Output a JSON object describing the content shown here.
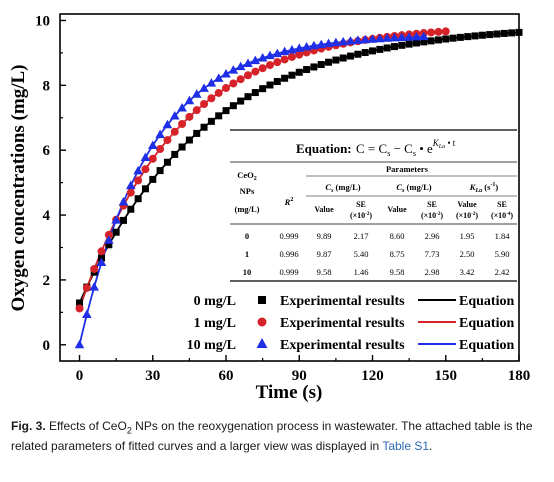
{
  "caption": {
    "label": "Fig. 3.",
    "text_before_sub": " Effects of CeO",
    "subscript": "2",
    "text_after_sub": " NPs on the reoxygenation process in wastewater. The attached table is the related parameters of fitted curves and a larger view was displayed in ",
    "link": "Table S1",
    "end": "."
  },
  "chart_data": {
    "type": "scatter",
    "xlabel": "Time (s)",
    "ylabel": "Oxygen concentrations (mg/L)",
    "xlim": [
      -8,
      180
    ],
    "ylim": [
      -0.5,
      10.2
    ],
    "xticks": [
      0,
      30,
      60,
      90,
      120,
      150,
      180
    ],
    "yticks": [
      0,
      2,
      4,
      6,
      8,
      10
    ],
    "series": [
      {
        "name": "0 mg/L",
        "marker": "square",
        "color": "#000000",
        "line_color": "#000000",
        "x": [
          0,
          3,
          6,
          9,
          12,
          15,
          18,
          21,
          24,
          27,
          30,
          33,
          36,
          39,
          42,
          45,
          48,
          51,
          54,
          57,
          60,
          63,
          66,
          69,
          72,
          75,
          78,
          81,
          84,
          87,
          90,
          93,
          96,
          99,
          102,
          105,
          108,
          111,
          114,
          117,
          120,
          123,
          126,
          129,
          132,
          135,
          138,
          141,
          144,
          147,
          150,
          153,
          156,
          159,
          162,
          165,
          168,
          171,
          174,
          177,
          180
        ],
        "cs": 9.89,
        "c0": 8.6,
        "k": 0.0195,
        "t_end": 180
      },
      {
        "name": "1 mg/L",
        "marker": "circle",
        "color": "#d6232a",
        "line_color": "#d6232a",
        "x": [
          0,
          3,
          6,
          9,
          12,
          15,
          18,
          21,
          24,
          27,
          30,
          33,
          36,
          39,
          42,
          45,
          48,
          51,
          54,
          57,
          60,
          63,
          66,
          69,
          72,
          75,
          78,
          81,
          84,
          87,
          90,
          93,
          96,
          99,
          102,
          105,
          108,
          111,
          114,
          117,
          120,
          123,
          126,
          129,
          132,
          135,
          138,
          141,
          144,
          147,
          150
        ],
        "cs": 9.87,
        "c0": 8.75,
        "k": 0.025,
        "t_end": 150
      },
      {
        "name": "10 mg/L",
        "marker": "triangle",
        "color": "#1f2fe6",
        "line_color": "#1f2fe6",
        "x": [
          0,
          3,
          6,
          9,
          12,
          15,
          18,
          21,
          24,
          27,
          30,
          33,
          36,
          39,
          42,
          45,
          48,
          51,
          54,
          57,
          60,
          63,
          66,
          69,
          72,
          75,
          78,
          81,
          84,
          87,
          90,
          93,
          96,
          99,
          102,
          105,
          108,
          111,
          114,
          117,
          120,
          123,
          126,
          129,
          132,
          135,
          138,
          141
        ],
        "cs": 9.58,
        "c0": 9.58,
        "k": 0.0342,
        "t_end": 141
      }
    ],
    "legend": {
      "placement": "bottom-right",
      "entries": [
        {
          "label": "0 mg/L",
          "points_text": "Experimental results",
          "line_text": "Equation"
        },
        {
          "label": "1 mg/L",
          "points_text": "Experimental results",
          "line_text": "Equation"
        },
        {
          "label": "10 mg/L",
          "points_text": "Experimental results",
          "line_text": "Equation"
        }
      ]
    }
  },
  "inset_table": {
    "equation_label": "Equation:",
    "eq_lhs": "C = C",
    "eq_s": "s",
    "eq_minus": " − C",
    "eq_s2": "s",
    "eq_bullet": " • e",
    "eq_exp": "K",
    "eq_exp_sub": "La",
    "eq_exp_tail": " • t",
    "group_header": "Parameters",
    "col_np": [
      "CeO",
      "2",
      "NPs",
      "(mg/L)"
    ],
    "col_r2": "R",
    "col_r2_sup": "2",
    "cs_header": "C",
    "cs_sub": "s",
    "cs_unit": " (mg/L)",
    "c0_header": "C",
    "c0_sub": "s",
    "c0_unit": " (mg/L)",
    "kla_header": "K",
    "kla_sub": "La",
    "kla_unit": " (s",
    "kla_sup": "-1",
    "kla_close": ")",
    "sub_value": "Value",
    "sub_se": "SE",
    "se_scale_cs": "(×10",
    "se_scale_cs_sup": "-2",
    "se_scale_c0": "(×10",
    "se_scale_c0_sup": "-2",
    "kla_value_scale": "(×10",
    "kla_value_scale_sup": "-2",
    "kla_se_scale": "(×10",
    "kla_se_scale_sup": "-4",
    "close_paren": ")",
    "rows": [
      {
        "np": "0",
        "r2": "0.999",
        "cs_val": "9.89",
        "cs_se": "2.17",
        "c0_val": "8.60",
        "c0_se": "2.96",
        "k_val": "1.95",
        "k_se": "1.84"
      },
      {
        "np": "1",
        "r2": "0.996",
        "cs_val": "9.87",
        "cs_se": "5.40",
        "c0_val": "8.75",
        "c0_se": "7.73",
        "k_val": "2.50",
        "k_se": "5.90"
      },
      {
        "np": "10",
        "r2": "0.999",
        "cs_val": "9.58",
        "cs_se": "1.46",
        "c0_val": "9.58",
        "c0_se": "2.98",
        "k_val": "3.42",
        "k_se": "2.42"
      }
    ]
  }
}
